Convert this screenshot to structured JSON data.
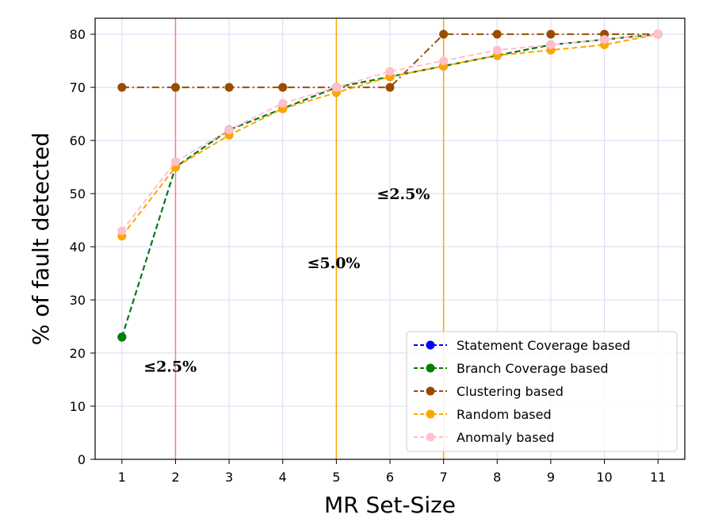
{
  "chart_data": {
    "type": "line",
    "title": "",
    "xlabel": "MR Set-Size",
    "ylabel": "% of fault detected",
    "xlim": [
      0.5,
      11.5
    ],
    "ylim": [
      0,
      83
    ],
    "x": [
      1,
      2,
      3,
      4,
      5,
      6,
      7,
      8,
      9,
      10,
      11
    ],
    "x_tick_labels": [
      "1",
      "2",
      "3",
      "4",
      "5",
      "6",
      "7",
      "8",
      "9",
      "10",
      "11"
    ],
    "y_ticks": [
      0,
      10,
      20,
      30,
      40,
      50,
      60,
      70,
      80
    ],
    "y_tick_labels": [
      "0",
      "10",
      "20",
      "30",
      "40",
      "50",
      "60",
      "70",
      "80"
    ],
    "grid": true,
    "legend_position": "lower-right",
    "series": [
      {
        "name": "Statement Coverage based",
        "color": "#0000ff",
        "style": "dashed",
        "values": [
          23,
          55,
          62,
          66,
          70,
          72,
          74,
          76,
          78,
          79,
          80
        ]
      },
      {
        "name": "Branch Coverage based",
        "color": "#008000",
        "style": "dashed",
        "values": [
          23,
          55,
          62,
          66,
          70,
          72,
          74,
          76,
          78,
          79,
          80
        ]
      },
      {
        "name": "Clustering based",
        "color": "#994c00",
        "style": "dashdot",
        "values": [
          70,
          70,
          70,
          70,
          70,
          70,
          80,
          80,
          80,
          80,
          80
        ]
      },
      {
        "name": "Random based",
        "color": "#ffa500",
        "style": "dashed",
        "values": [
          42,
          55,
          61,
          66,
          69,
          72,
          74,
          76,
          77,
          78,
          80
        ]
      },
      {
        "name": "Anomaly based",
        "color": "#ffc0cb",
        "style": "dashed",
        "values": [
          43,
          56,
          62,
          67,
          70,
          73,
          75,
          77,
          78,
          79,
          80
        ]
      }
    ],
    "vertical_lines": [
      {
        "x": 2,
        "color": "#f08080"
      },
      {
        "x": 5,
        "color": "#ffa500"
      },
      {
        "x": 7,
        "color": "#ffa500"
      }
    ],
    "annotations": [
      {
        "text": "≤2.5%",
        "x": 1.9,
        "y": 16.5
      },
      {
        "text": "≤5.0%",
        "x": 4.95,
        "y": 36
      },
      {
        "text": "≤2.5%",
        "x": 6.25,
        "y": 49
      }
    ]
  }
}
